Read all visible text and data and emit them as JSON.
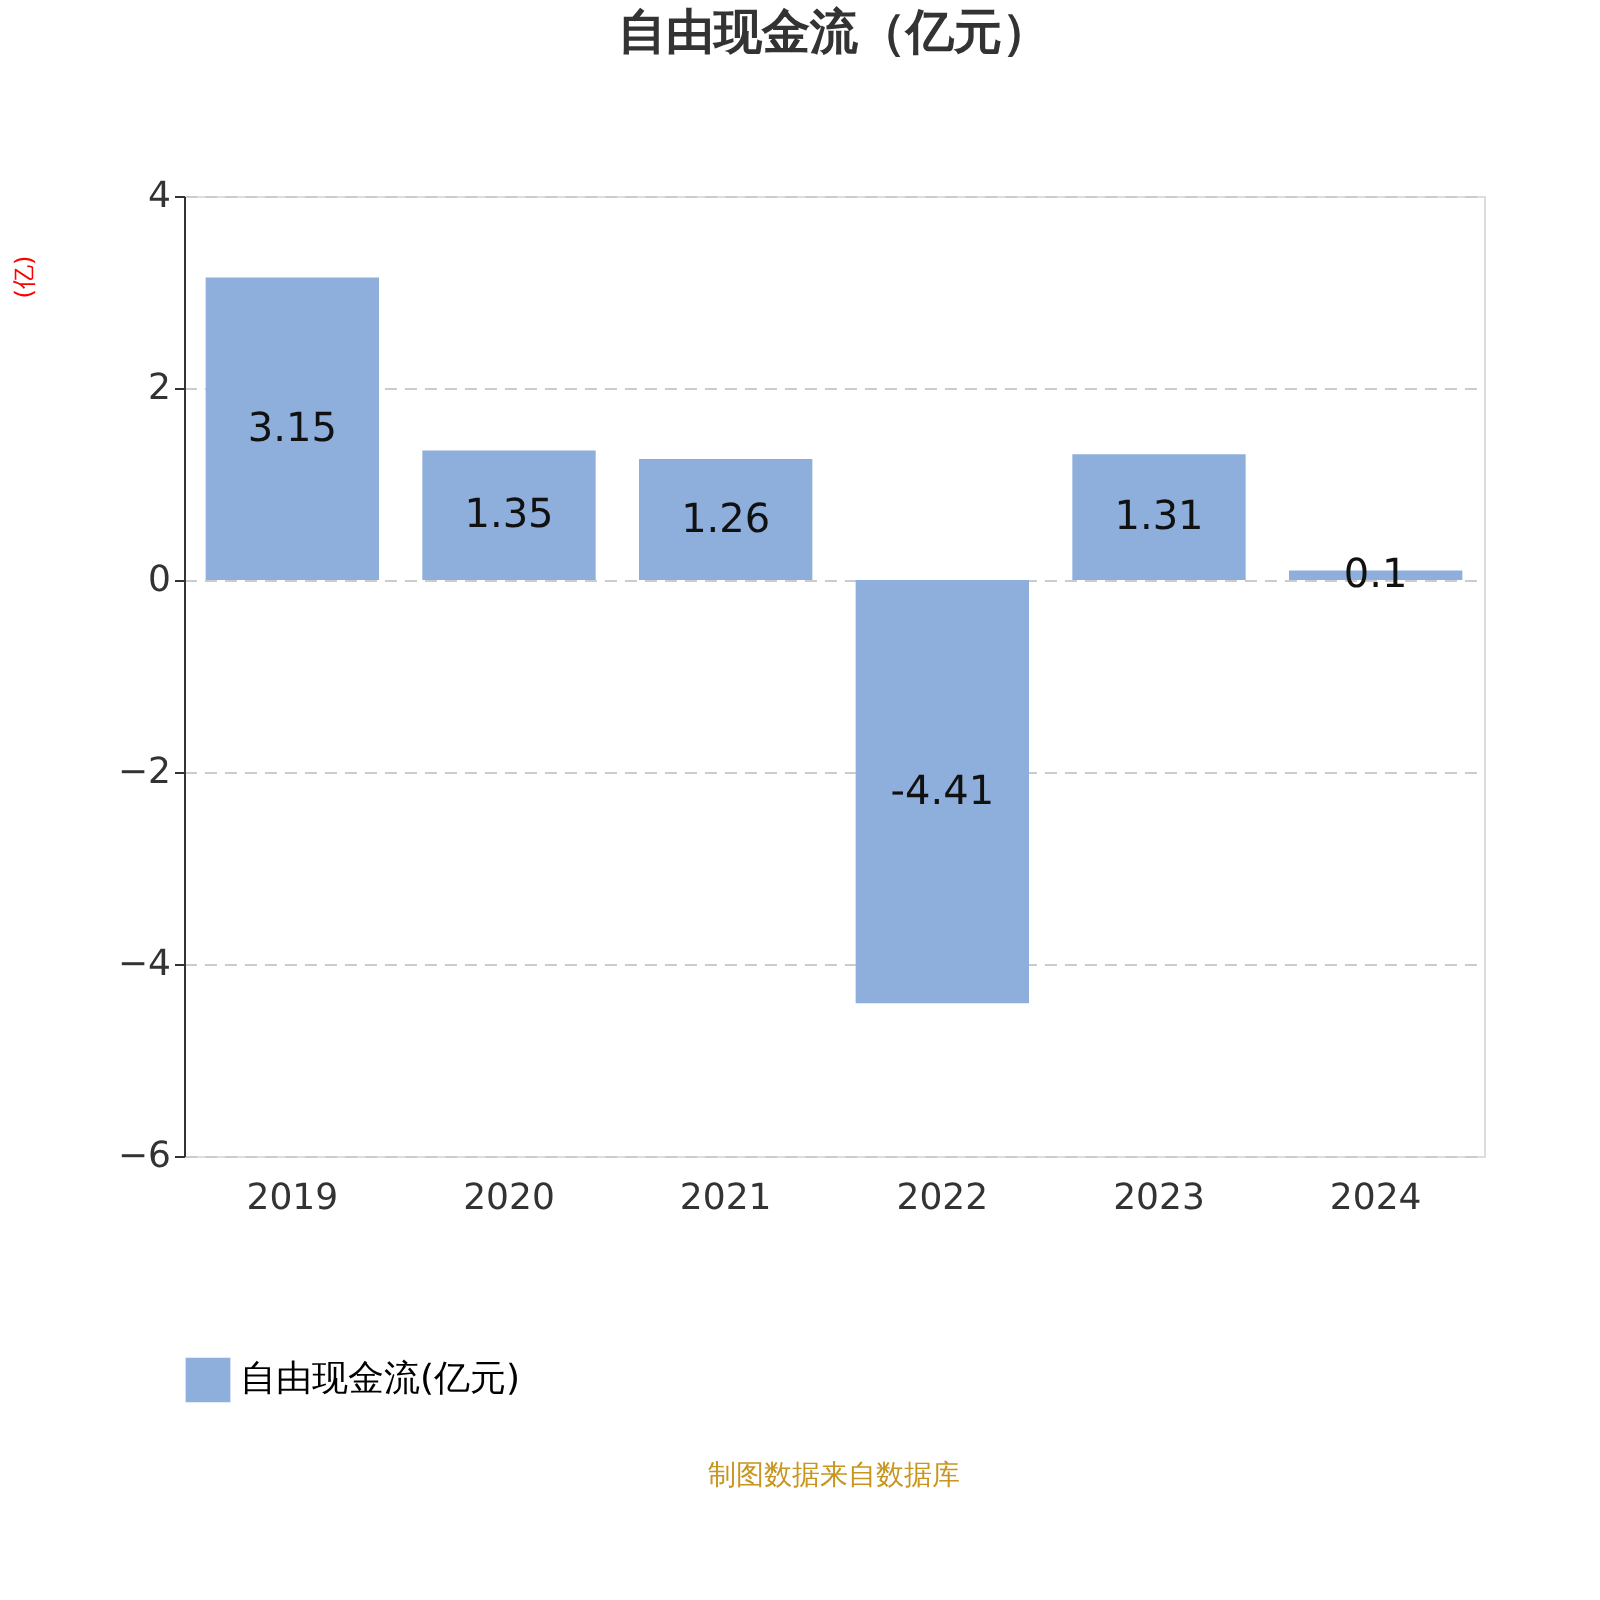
{
  "chart_data": {
    "type": "bar",
    "title": "自由现金流（亿元）",
    "ylabel": "(亿)",
    "categories": [
      "2019",
      "2020",
      "2021",
      "2022",
      "2023",
      "2024"
    ],
    "series": [
      {
        "name": "自由现金流(亿元)",
        "color": "#8eaedb",
        "values": [
          3.15,
          1.35,
          1.26,
          -4.41,
          1.31,
          0.1
        ]
      }
    ],
    "ylim": [
      -6,
      4
    ],
    "yticks": [
      -6,
      -4,
      -2,
      0,
      2,
      4
    ],
    "grid": "y",
    "legend": "bottom",
    "data_labels": true,
    "annotations": [
      "制图数据来自数据库"
    ]
  }
}
